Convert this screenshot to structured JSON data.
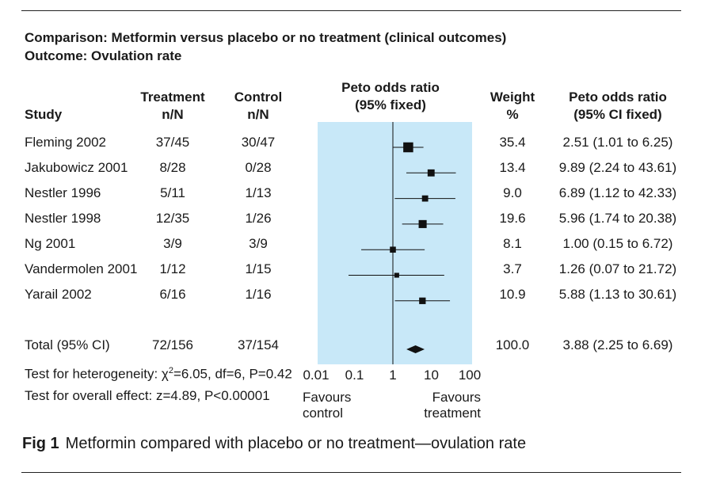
{
  "chart_data": {
    "type": "forest",
    "comparison_title": "Comparison: Metformin versus placebo or no treatment (clinical outcomes)",
    "outcome_title": "Outcome: Ovulation rate",
    "headers": {
      "study": "Study",
      "treatment_line1": "Treatment",
      "treatment_line2": "n/N",
      "control_line1": "Control",
      "control_line2": "n/N",
      "plot_line1": "Peto odds ratio",
      "plot_line2": "(95% fixed)",
      "weight_line1": "Weight",
      "weight_line2": "%",
      "or_line1": "Peto odds ratio",
      "or_line2": "(95% CI fixed)"
    },
    "studies": [
      {
        "study": "Fleming 2002",
        "treatment": "37/45",
        "control": "30/47",
        "weight": "35.4",
        "or_text": "2.51 (1.01 to 6.25)",
        "or": 2.51,
        "lo": 1.01,
        "hi": 6.25,
        "w": 35.4
      },
      {
        "study": "Jakubowicz 2001",
        "treatment": "8/28",
        "control": "0/28",
        "weight": "13.4",
        "or_text": "9.89 (2.24 to 43.61)",
        "or": 9.89,
        "lo": 2.24,
        "hi": 43.61,
        "w": 13.4
      },
      {
        "study": "Nestler 1996",
        "treatment": "5/11",
        "control": "1/13",
        "weight": "9.0",
        "or_text": "6.89 (1.12 to 42.33)",
        "or": 6.89,
        "lo": 1.12,
        "hi": 42.33,
        "w": 9.0
      },
      {
        "study": "Nestler 1998",
        "treatment": "12/35",
        "control": "1/26",
        "weight": "19.6",
        "or_text": "5.96 (1.74 to 20.38)",
        "or": 5.96,
        "lo": 1.74,
        "hi": 20.38,
        "w": 19.6
      },
      {
        "study": "Ng 2001",
        "treatment": "3/9",
        "control": "3/9",
        "weight": "8.1",
        "or_text": "1.00 (0.15 to 6.72)",
        "or": 1.0,
        "lo": 0.15,
        "hi": 6.72,
        "w": 8.1
      },
      {
        "study": "Vandermolen 2001",
        "treatment": "1/12",
        "control": "1/15",
        "weight": "3.7",
        "or_text": "1.26 (0.07 to 21.72)",
        "or": 1.26,
        "lo": 0.07,
        "hi": 21.72,
        "w": 3.7
      },
      {
        "study": "Yarail 2002",
        "treatment": "6/16",
        "control": "1/16",
        "weight": "10.9",
        "or_text": "5.88 (1.13 to 30.61)",
        "or": 5.88,
        "lo": 1.13,
        "hi": 30.61,
        "w": 10.9
      }
    ],
    "total": {
      "label": "Total (95% CI)",
      "treatment": "72/156",
      "control": "37/154",
      "weight": "100.0",
      "or_text": "3.88 (2.25 to 6.69)",
      "or": 3.88,
      "lo": 2.25,
      "hi": 6.69
    },
    "heterogeneity_prefix": "Test for heterogeneity: χ",
    "heterogeneity_sup": "2",
    "heterogeneity_suffix": "=6.05, df=6, P=0.42",
    "overall_effect": "Test for overall effect: z=4.89, P<0.00001",
    "x_scale": "log",
    "xlim": [
      0.01,
      100
    ],
    "x_ticks": [
      {
        "value": 0.01,
        "label": "0.01"
      },
      {
        "value": 0.1,
        "label": "0.1"
      },
      {
        "value": 1,
        "label": "1"
      },
      {
        "value": 10,
        "label": "10"
      },
      {
        "value": 100,
        "label": "100"
      }
    ],
    "favours_left_line1": "Favours",
    "favours_left_line2": "control",
    "favours_right_line1": "Favours",
    "favours_right_line2": "treatment",
    "panel_color": "#c8e8f8",
    "figure_label": "Fig 1",
    "figure_caption": "Metformin compared with placebo or no treatment—ovulation rate"
  }
}
